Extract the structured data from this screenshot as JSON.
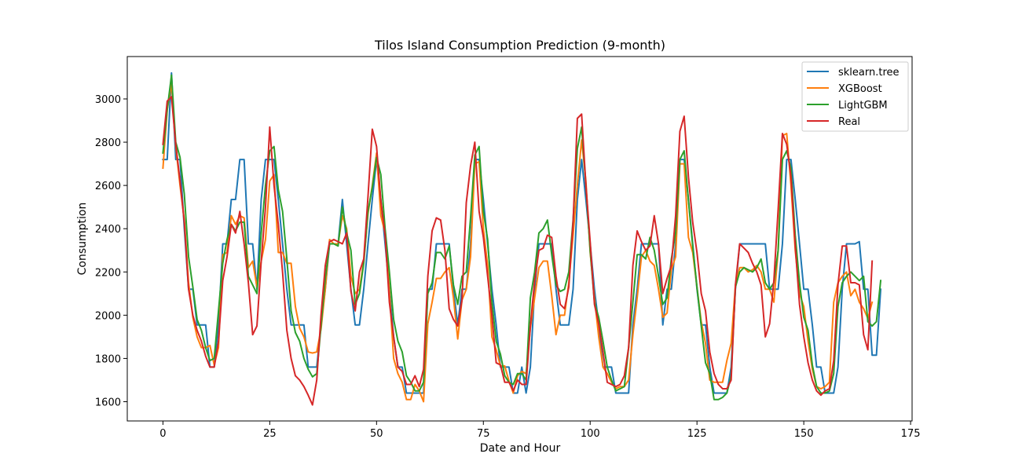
{
  "chart_data": {
    "type": "line",
    "title": "Tilos Island Consumption Prediction (9-month)",
    "xlabel": "Date and Hour",
    "ylabel": "Consumption",
    "xlim": [
      -8.35,
      175.35
    ],
    "ylim": [
      1511,
      3196
    ],
    "xticks": [
      0,
      25,
      50,
      75,
      100,
      125,
      150,
      175
    ],
    "yticks": [
      1600,
      1800,
      2000,
      2200,
      2400,
      2600,
      2800,
      3000
    ],
    "grid": false,
    "legend": "upper right",
    "series": [
      {
        "name": "sklearn.tree",
        "color": "#1f77b4",
        "values": [
          2720,
          2720,
          3120,
          2720,
          2720,
          2400,
          2120,
          2120,
          1955,
          1955,
          1955,
          1760,
          1760,
          1955,
          2330,
          2330,
          2535,
          2535,
          2720,
          2720,
          2330,
          2330,
          2120,
          2535,
          2720,
          2720,
          2720,
          2535,
          2330,
          2120,
          1955,
          1955,
          1955,
          1955,
          1760,
          1760,
          1760,
          1955,
          2120,
          2330,
          2330,
          2330,
          2535,
          2330,
          2120,
          1955,
          1955,
          2120,
          2330,
          2535,
          2720,
          2535,
          2330,
          2120,
          1900,
          1760,
          1760,
          1640,
          1640,
          1640,
          1640,
          1640,
          2120,
          2120,
          2330,
          2330,
          2330,
          2330,
          2120,
          1955,
          2120,
          2120,
          2330,
          2720,
          2720,
          2535,
          2330,
          2120,
          1955,
          1760,
          1760,
          1760,
          1640,
          1640,
          1760,
          1640,
          1760,
          2120,
          2330,
          2330,
          2330,
          2330,
          2120,
          1955,
          1955,
          1955,
          2120,
          2535,
          2720,
          2535,
          2330,
          2120,
          1955,
          1760,
          1760,
          1760,
          1640,
          1640,
          1640,
          1640,
          1955,
          2120,
          2330,
          2330,
          2330,
          2330,
          2330,
          1955,
          2120,
          2120,
          2330,
          2720,
          2720,
          2535,
          2330,
          2120,
          1955,
          1955,
          1760,
          1640,
          1640,
          1640,
          1640,
          1760,
          2120,
          2330,
          2330,
          2330,
          2330,
          2330,
          2330,
          2330,
          2120,
          2120,
          2120,
          2330,
          2720,
          2720,
          2535,
          2330,
          2120,
          2120,
          1955,
          1760,
          1760,
          1640,
          1640,
          1640,
          1760,
          2120,
          2330,
          2330,
          2330,
          2340,
          2120,
          2120,
          1815,
          1815,
          2120
        ]
      },
      {
        "name": "XGBoost",
        "color": "#ff7f0e",
        "values": [
          2680,
          2950,
          3070,
          2780,
          2600,
          2440,
          2150,
          1990,
          1900,
          1850,
          1850,
          1860,
          1770,
          1850,
          2280,
          2290,
          2460,
          2420,
          2460,
          2450,
          2220,
          2250,
          2130,
          2250,
          2350,
          2620,
          2650,
          2290,
          2290,
          2240,
          2240,
          2040,
          1940,
          1900,
          1830,
          1825,
          1830,
          1935,
          2120,
          2350,
          2330,
          2330,
          2460,
          2400,
          2180,
          2100,
          2120,
          2250,
          2470,
          2600,
          2750,
          2460,
          2380,
          2110,
          1800,
          1730,
          1690,
          1610,
          1610,
          1680,
          1650,
          1600,
          1960,
          2060,
          2170,
          2170,
          2200,
          2220,
          2080,
          1890,
          2070,
          2120,
          2270,
          2700,
          2710,
          2400,
          2230,
          1900,
          1840,
          1765,
          1765,
          1695,
          1640,
          1720,
          1740,
          1730,
          1940,
          2080,
          2220,
          2250,
          2250,
          2090,
          1910,
          2000,
          2000,
          2150,
          2370,
          2600,
          2810,
          2620,
          2290,
          2080,
          1900,
          1760,
          1730,
          1690,
          1660,
          1670,
          1670,
          1700,
          1910,
          2080,
          2270,
          2300,
          2250,
          2230,
          2120,
          1990,
          2010,
          2210,
          2270,
          2700,
          2700,
          2360,
          2290,
          2130,
          1970,
          1870,
          1700,
          1690,
          1690,
          1690,
          1790,
          1870,
          2140,
          2220,
          2220,
          2200,
          2210,
          2230,
          2200,
          2120,
          2120,
          2060,
          2300,
          2830,
          2840,
          2600,
          2300,
          2100,
          2040,
          1880,
          1750,
          1670,
          1660,
          1670,
          1690,
          2060,
          2150,
          2180,
          2200,
          2090,
          2120,
          2060,
          2030,
          1985,
          2060
        ]
      },
      {
        "name": "LightGBM",
        "color": "#2ca02c",
        "values": [
          2750,
          2950,
          3110,
          2800,
          2730,
          2560,
          2270,
          2130,
          1980,
          1930,
          1850,
          1790,
          1800,
          2020,
          2240,
          2350,
          2420,
          2390,
          2430,
          2430,
          2180,
          2140,
          2100,
          2380,
          2600,
          2760,
          2780,
          2580,
          2480,
          2260,
          2020,
          1920,
          1880,
          1800,
          1750,
          1715,
          1730,
          1950,
          2170,
          2330,
          2330,
          2320,
          2500,
          2380,
          2300,
          2050,
          2100,
          2240,
          2480,
          2590,
          2730,
          2650,
          2400,
          2200,
          1980,
          1880,
          1830,
          1720,
          1690,
          1650,
          1650,
          1690,
          2100,
          2150,
          2290,
          2290,
          2260,
          2320,
          2140,
          2050,
          2180,
          2200,
          2450,
          2740,
          2780,
          2480,
          2350,
          2060,
          1880,
          1820,
          1720,
          1690,
          1680,
          1730,
          1730,
          1700,
          2080,
          2200,
          2380,
          2400,
          2440,
          2280,
          2140,
          2110,
          2120,
          2200,
          2440,
          2770,
          2870,
          2600,
          2300,
          2060,
          1990,
          1880,
          1760,
          1700,
          1650,
          1660,
          1670,
          1850,
          2060,
          2280,
          2280,
          2260,
          2360,
          2300,
          2180,
          2050,
          2080,
          2260,
          2380,
          2720,
          2760,
          2530,
          2320,
          2130,
          1950,
          1780,
          1730,
          1610,
          1610,
          1620,
          1640,
          1720,
          2130,
          2200,
          2220,
          2210,
          2200,
          2220,
          2260,
          2150,
          2120,
          2150,
          2300,
          2720,
          2760,
          2680,
          2370,
          2150,
          1990,
          1930,
          1770,
          1670,
          1640,
          1640,
          1650,
          1730,
          2040,
          2150,
          2180,
          2200,
          2180,
          2160,
          2180,
          1970,
          1950,
          1970,
          2160
        ]
      },
      {
        "name": "Real",
        "color": "#d62728",
        "values": [
          2790,
          2990,
          3010,
          2790,
          2620,
          2430,
          2120,
          2000,
          1930,
          1880,
          1810,
          1760,
          1760,
          1880,
          2160,
          2270,
          2420,
          2380,
          2480,
          2330,
          2150,
          1910,
          1950,
          2250,
          2500,
          2870,
          2600,
          2420,
          2200,
          1930,
          1800,
          1720,
          1700,
          1670,
          1630,
          1585,
          1700,
          2000,
          2230,
          2340,
          2350,
          2340,
          2330,
          2380,
          2110,
          2020,
          2200,
          2260,
          2550,
          2860,
          2780,
          2530,
          2370,
          2060,
          1900,
          1760,
          1740,
          1680,
          1680,
          1720,
          1670,
          1750,
          2180,
          2390,
          2450,
          2440,
          2300,
          2030,
          1980,
          1950,
          2070,
          2520,
          2690,
          2800,
          2480,
          2360,
          2180,
          2000,
          1780,
          1770,
          1690,
          1690,
          1650,
          1700,
          1680,
          1680,
          1950,
          2160,
          2300,
          2310,
          2370,
          2360,
          2180,
          2050,
          2030,
          2130,
          2430,
          2910,
          2930,
          2600,
          2340,
          2050,
          1960,
          1830,
          1690,
          1680,
          1670,
          1680,
          1720,
          1850,
          2230,
          2390,
          2340,
          2300,
          2320,
          2460,
          2330,
          2100,
          2170,
          2230,
          2460,
          2850,
          2920,
          2640,
          2430,
          2290,
          2100,
          2020,
          1830,
          1730,
          1680,
          1660,
          1660,
          1700,
          2140,
          2330,
          2310,
          2290,
          2240,
          2200,
          2140,
          1900,
          1960,
          2160,
          2490,
          2840,
          2790,
          2640,
          2320,
          2050,
          1900,
          1780,
          1700,
          1650,
          1630,
          1650,
          1660,
          1790,
          2140,
          2320,
          2320,
          2150,
          2150,
          2140,
          1910,
          1840,
          2250
        ]
      }
    ]
  }
}
